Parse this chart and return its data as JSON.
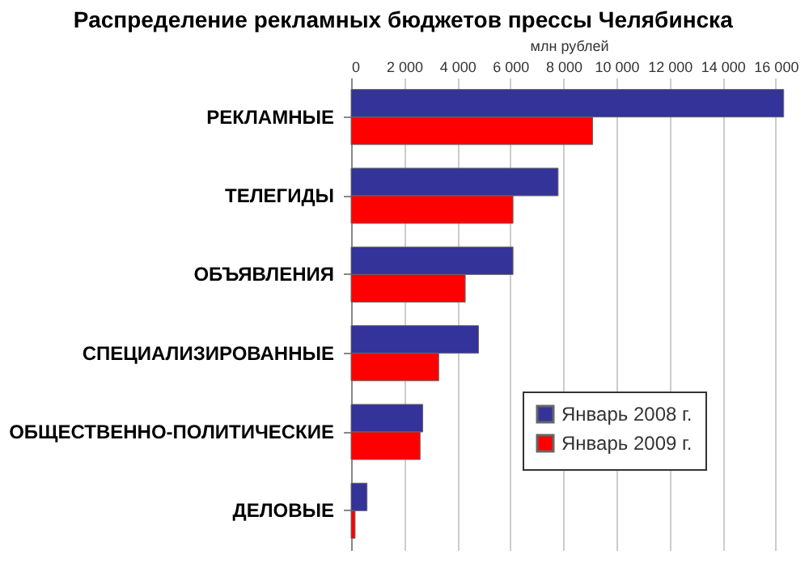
{
  "chart_data": {
    "type": "bar",
    "orientation": "horizontal",
    "title": "Распределение рекламных бюджетов прессы Челябинска",
    "xlabel": "млн рублей",
    "categories": [
      "РЕКЛАМНЫЕ",
      "ТЕЛЕГИДЫ",
      "ОБЪЯВЛЕНИЯ",
      "СПЕЦИАЛИЗИРОВАННЫЕ",
      "ОБЩЕСТВЕННО-ПОЛИТИЧЕСКИЕ",
      "ДЕЛОВЫЕ"
    ],
    "series": [
      {
        "name": "Январь 2008 г.",
        "color": "#333399",
        "values": [
          16300,
          7800,
          6100,
          4800,
          2700,
          600
        ]
      },
      {
        "name": "Январь 2009 г.",
        "color": "#ff0000",
        "values": [
          9100,
          6100,
          4300,
          3300,
          2600,
          150
        ]
      }
    ],
    "xlim": [
      0,
      16400
    ],
    "xticks": [
      0,
      {
        "value": 2000,
        "label": "2 000"
      },
      {
        "value": 4000,
        "label": "4 000"
      },
      {
        "value": 6000,
        "label": "6 000"
      },
      {
        "value": 8000,
        "label": "8 000"
      },
      {
        "value": 10000,
        "label": "10 000"
      },
      {
        "value": 12000,
        "label": "12 000"
      },
      {
        "value": 14000,
        "label": "14 000"
      },
      {
        "value": 16000,
        "label": "16 000"
      }
    ],
    "grid": "x",
    "legend": "bottom right"
  }
}
